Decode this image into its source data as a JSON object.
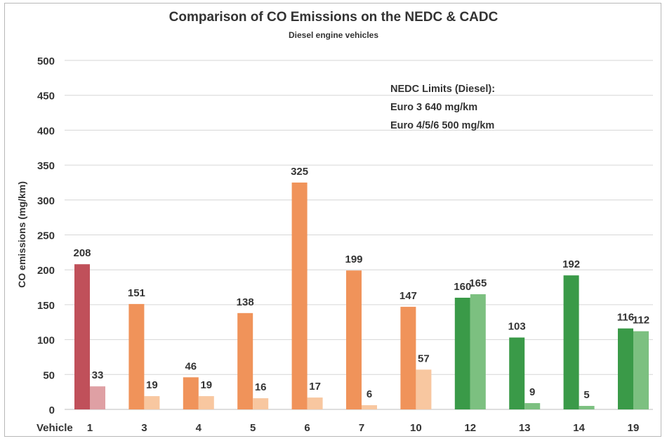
{
  "chart_data": {
    "type": "bar",
    "title": "Comparison of CO Emissions on the NEDC & CADC",
    "subtitle": "Diesel engine vehicles",
    "ylabel": "CO emissions (mg/km)",
    "x_axis_label": "Vehicle",
    "ylim": [
      0,
      500
    ],
    "yticks": [
      0,
      50,
      100,
      150,
      200,
      250,
      300,
      350,
      400,
      450,
      500
    ],
    "grid": true,
    "categories": [
      "1",
      "3",
      "4",
      "5",
      "6",
      "7",
      "10",
      "12",
      "13",
      "14",
      "19"
    ],
    "series": [
      {
        "values": [
          208,
          151,
          46,
          138,
          325,
          199,
          147,
          160,
          103,
          192,
          116
        ]
      },
      {
        "values": [
          33,
          19,
          19,
          16,
          17,
          6,
          57,
          165,
          9,
          5,
          112
        ]
      }
    ],
    "bar_colors": {
      "first": [
        "#c0505a",
        "#f0935a",
        "#f0935a",
        "#f0935a",
        "#f0935a",
        "#f0935a",
        "#f0935a",
        "#3a9a48",
        "#3a9a48",
        "#3a9a48",
        "#3a9a48"
      ],
      "second": [
        "#dfa0a4",
        "#f8c7a0",
        "#f8c7a0",
        "#f8c7a0",
        "#f8c7a0",
        "#f8c7a0",
        "#f8c7a0",
        "#7cc080",
        "#7cc080",
        "#7cc080",
        "#7cc080"
      ]
    },
    "annotation": [
      "NEDC Limits (Diesel):",
      "Euro 3 640 mg/km",
      "Euro 4/5/6 500 mg/km"
    ]
  }
}
